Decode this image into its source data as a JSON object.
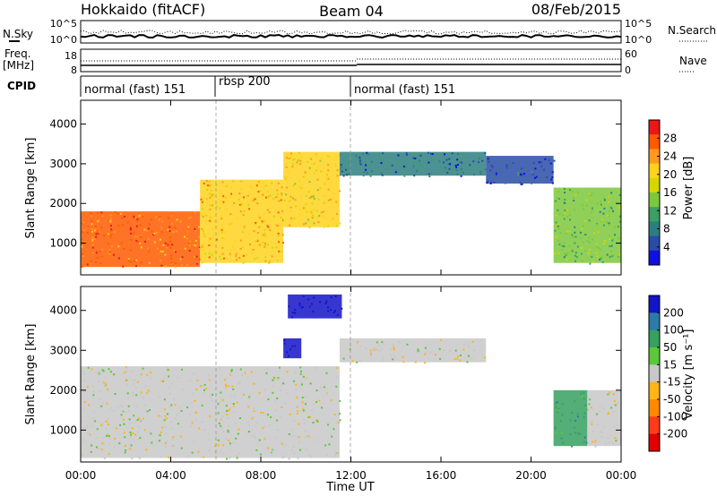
{
  "header": {
    "title": "Hokkaido (fitACF)",
    "beam": "Beam 04",
    "date": "08/Feb/2015"
  },
  "top_panels": {
    "nsky_label": "N.Sky",
    "nsky_ticks": [
      "10^5",
      "10^0"
    ],
    "nsearch_label": "N.Search",
    "nsearch_ticks": [
      "10^5",
      "10^0"
    ],
    "freq_label": "Freq.",
    "freq_unit": "[MHz]",
    "freq_ticks": [
      "18",
      "8"
    ],
    "nave_label": "Nave",
    "nave_ticks": [
      "60",
      "0"
    ],
    "cpid_label": "CPID"
  },
  "cpid_segments": [
    {
      "label": "normal (fast) 151",
      "start_hour": 0
    },
    {
      "label": "rbsp 200",
      "start_hour": 6
    },
    {
      "label": "normal (fast) 151",
      "start_hour": 12
    }
  ],
  "x_axis": {
    "title": "Time UT",
    "ticks": [
      "00:00",
      "04:00",
      "08:00",
      "12:00",
      "16:00",
      "20:00",
      "00:00"
    ],
    "tick_hours": [
      0,
      4,
      8,
      12,
      16,
      20,
      24
    ]
  },
  "panels": [
    {
      "ylabel": "Slant Range [km]",
      "yticks": [
        "4000",
        "3000",
        "2000",
        "1000"
      ],
      "ytick_values": [
        4000,
        3000,
        2000,
        1000
      ],
      "colorbar_label": "Power [dB]",
      "colorbar_ticks": [
        "28",
        "24",
        "20",
        "16",
        "12",
        "8",
        "4"
      ],
      "colorbar_colors": [
        "#e81818",
        "#ff5a00",
        "#ff9a1e",
        "#ffd21e",
        "#d6d600",
        "#7cc83c",
        "#3c9f64",
        "#2d7f7f",
        "#2a4ca8",
        "#1010e0"
      ]
    },
    {
      "ylabel": "Slant Range [km]",
      "yticks": [
        "4000",
        "3000",
        "2000",
        "1000"
      ],
      "ytick_values": [
        4000,
        3000,
        2000,
        1000
      ],
      "colorbar_label": "Velocity [m s⁻¹]",
      "colorbar_ticks": [
        "200",
        "100",
        "50",
        "15",
        "-15",
        "-50",
        "-100",
        "-200"
      ],
      "colorbar_colors": [
        "#1414c8",
        "#2c7aa8",
        "#36a060",
        "#5ac83a",
        "#c8c8c8",
        "#ffb418",
        "#ff8a00",
        "#ff3c1a",
        "#e00000"
      ]
    }
  ],
  "chart_data": {
    "type": "heatmap",
    "xlabel": "Time UT",
    "ylabel": "Slant Range [km]",
    "xlim": [
      0,
      24
    ],
    "ylim": [
      200,
      4600
    ],
    "grid": false,
    "echo_regions_power": [
      {
        "t0": 0.0,
        "t1": 5.3,
        "r0": 400,
        "r1": 1800,
        "dB": 26
      },
      {
        "t0": 5.3,
        "t1": 9.0,
        "r0": 500,
        "r1": 2600,
        "dB": 22
      },
      {
        "t0": 9.0,
        "t1": 11.5,
        "r0": 1400,
        "r1": 3300,
        "dB": 20
      },
      {
        "t0": 11.5,
        "t1": 18.0,
        "r0": 2700,
        "r1": 3300,
        "dB": 8
      },
      {
        "t0": 18.0,
        "t1": 21.0,
        "r0": 2500,
        "r1": 3200,
        "dB": 6
      },
      {
        "t0": 21.0,
        "t1": 24.0,
        "r0": 500,
        "r1": 2400,
        "dB": 14
      }
    ],
    "echo_regions_velocity": [
      {
        "t0": 0.0,
        "t1": 11.5,
        "r0": 300,
        "r1": 2600,
        "v": 0
      },
      {
        "t0": 9.0,
        "t1": 9.8,
        "r0": 2800,
        "r1": 3300,
        "v": 200
      },
      {
        "t0": 9.2,
        "t1": 11.6,
        "r0": 3800,
        "r1": 4400,
        "v": 200
      },
      {
        "t0": 11.5,
        "t1": 18.0,
        "r0": 2700,
        "r1": 3300,
        "v": 0
      },
      {
        "t0": 21.0,
        "t1": 22.5,
        "r0": 600,
        "r1": 2000,
        "v": 50
      },
      {
        "t0": 22.5,
        "t1": 24.0,
        "r0": 600,
        "r1": 2000,
        "v": 0
      }
    ]
  }
}
